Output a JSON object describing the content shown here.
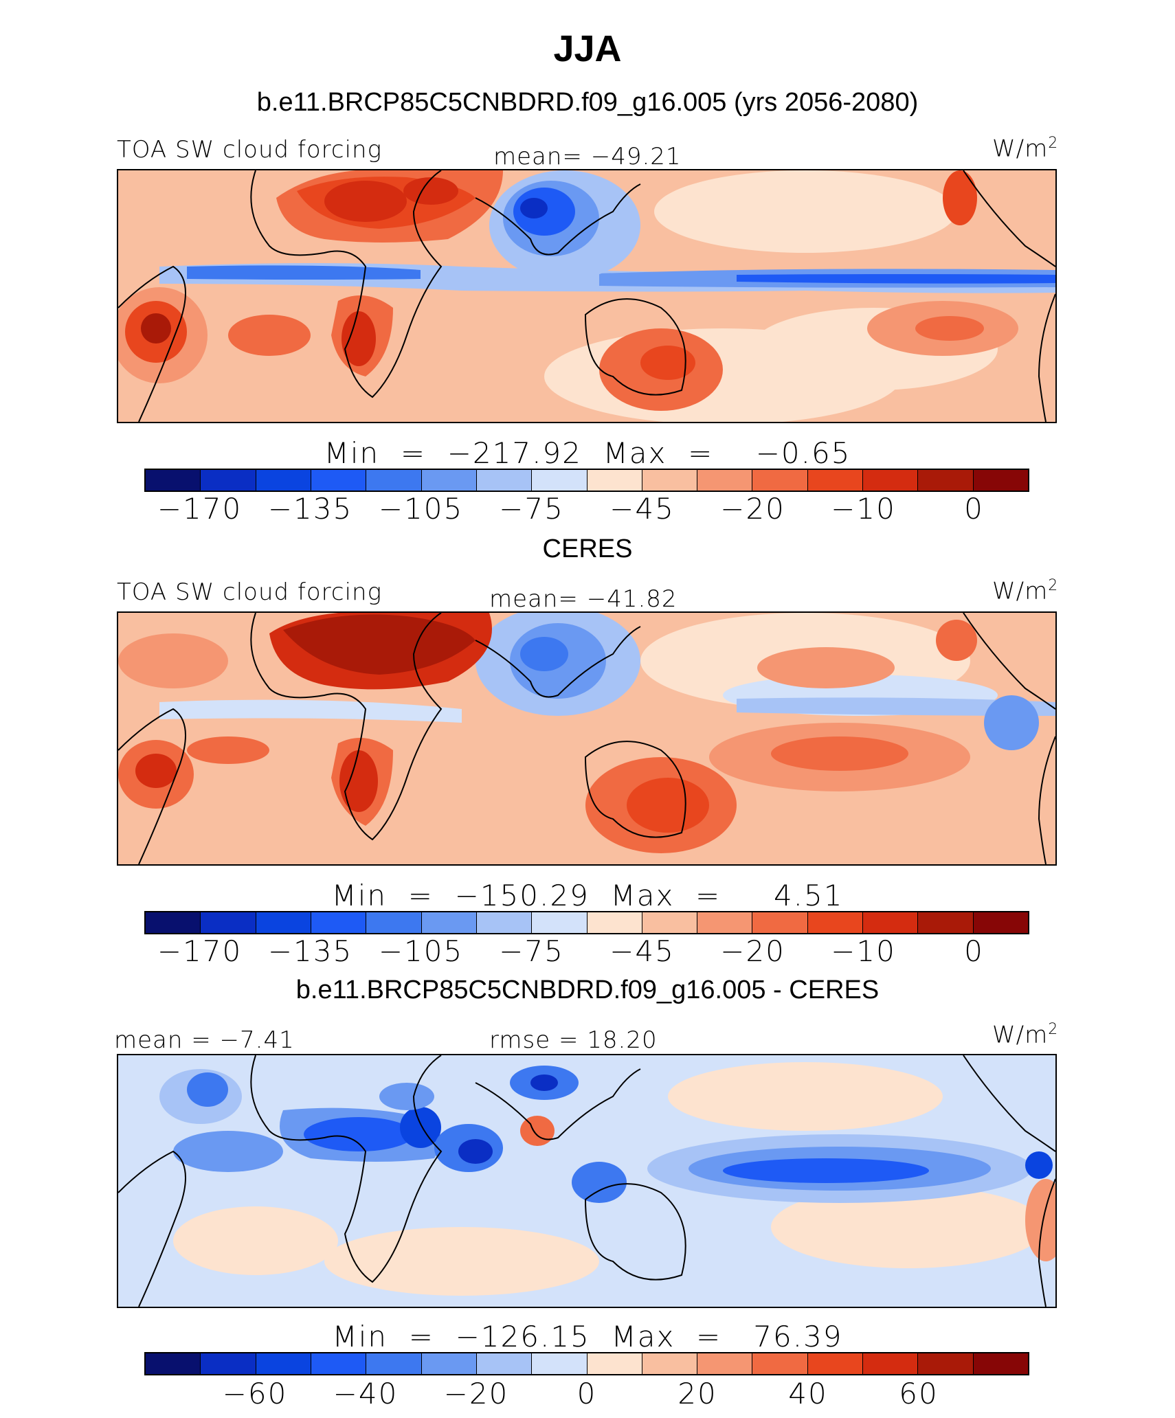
{
  "title": "JJA",
  "colors": [
    "#08106e",
    "#0a2ec4",
    "#0a44e0",
    "#1e5af5",
    "#3d78f0",
    "#6a99f2",
    "#a7c3f6",
    "#d3e2fa",
    "#fde3cf",
    "#f9bfa0",
    "#f59672",
    "#f06a42",
    "#e8461e",
    "#d42c10",
    "#a91a08",
    "#870606"
  ],
  "panels": [
    {
      "title": "b.e11.BRCP85C5CNBDRD.f09_g16.005 (yrs 2056-2080)",
      "left_label": "TOA SW cloud forcing",
      "center_label": "mean=  −49.21",
      "units": "W/m",
      "units_sup": "2",
      "minmax": "Min  =  −217.92  Max  =    −0.65",
      "ticks": [
        "−170",
        "−135",
        "−105",
        "−75",
        "−45",
        "−20",
        "−10",
        "0"
      ]
    },
    {
      "title": "CERES",
      "left_label": "TOA SW cloud forcing",
      "center_label": "mean=  −41.82",
      "units": "W/m",
      "units_sup": "2",
      "minmax": "Min  =  −150.29  Max  =     4.51",
      "ticks": [
        "−170",
        "−135",
        "−105",
        "−75",
        "−45",
        "−20",
        "−10",
        "0"
      ]
    },
    {
      "title": "b.e11.BRCP85C5CNBDRD.f09_g16.005 - CERES",
      "left_label": "mean  =   −7.41",
      "center_label": "rmse  =   18.20",
      "units": "W/m",
      "units_sup": "2",
      "minmax": "Min  =  −126.15  Max  =   76.39",
      "ticks": [
        "−60",
        "−40",
        "−20",
        "0",
        "20",
        "40",
        "60"
      ]
    }
  ]
}
